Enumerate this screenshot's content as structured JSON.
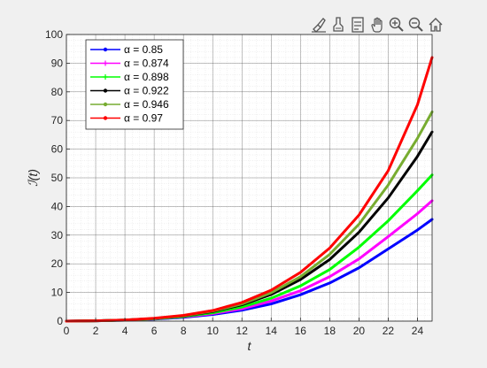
{
  "toolbar": {
    "icons": [
      "brush-icon",
      "data-tips-icon",
      "legend-icon",
      "pan-hand-icon",
      "zoom-in-icon",
      "zoom-out-icon",
      "home-icon"
    ]
  },
  "chart_data": {
    "type": "line",
    "xlabel": "t",
    "ylabel": "ℐ(t)",
    "xlim": [
      0,
      25
    ],
    "ylim": [
      0,
      100
    ],
    "xticks": [
      0,
      2,
      4,
      6,
      8,
      10,
      12,
      14,
      16,
      18,
      20,
      22,
      24
    ],
    "yticks": [
      0,
      10,
      20,
      30,
      40,
      50,
      60,
      70,
      80,
      90,
      100
    ],
    "grid": true,
    "minor_grid": true,
    "legend_position": "top-left",
    "x": [
      0,
      2,
      4,
      6,
      8,
      10,
      12,
      14,
      16,
      18,
      20,
      22,
      24,
      25
    ],
    "series": [
      {
        "name": "α = 0.85",
        "color": "#0000ff",
        "marker": "dot",
        "values": [
          0,
          0.1,
          0.3,
          0.7,
          1.3,
          2.3,
          3.8,
          6.0,
          9.2,
          13.3,
          18.6,
          25.2,
          31.8,
          35.5
        ]
      },
      {
        "name": "α = 0.874",
        "color": "#ff00ff",
        "marker": "plus",
        "values": [
          0,
          0.1,
          0.3,
          0.8,
          1.5,
          2.6,
          4.3,
          7.0,
          10.6,
          15.5,
          21.7,
          29.5,
          37.5,
          42.0
        ]
      },
      {
        "name": "α = 0.898",
        "color": "#00ff00",
        "marker": "plus",
        "values": [
          0,
          0.1,
          0.3,
          0.8,
          1.6,
          2.9,
          4.9,
          8.0,
          12.3,
          18.0,
          25.8,
          35.0,
          45.5,
          51.0
        ]
      },
      {
        "name": "α = 0.922",
        "color": "#000000",
        "marker": "dot",
        "values": [
          0,
          0.1,
          0.4,
          0.9,
          1.8,
          3.3,
          5.7,
          9.3,
          14.5,
          21.5,
          31.0,
          43.0,
          57.5,
          66.0
        ]
      },
      {
        "name": "α = 0.946",
        "color": "#77ac30",
        "marker": "dot",
        "values": [
          0,
          0.1,
          0.4,
          0.9,
          1.9,
          3.5,
          6.0,
          9.9,
          15.5,
          23.3,
          33.8,
          47.5,
          63.8,
          73.0
        ]
      },
      {
        "name": "α = 0.97",
        "color": "#ff0000",
        "marker": "dot",
        "values": [
          0,
          0.1,
          0.4,
          1.0,
          2.0,
          3.7,
          6.5,
          10.8,
          17.0,
          25.5,
          37.0,
          52.5,
          75.5,
          92.0
        ]
      }
    ]
  }
}
